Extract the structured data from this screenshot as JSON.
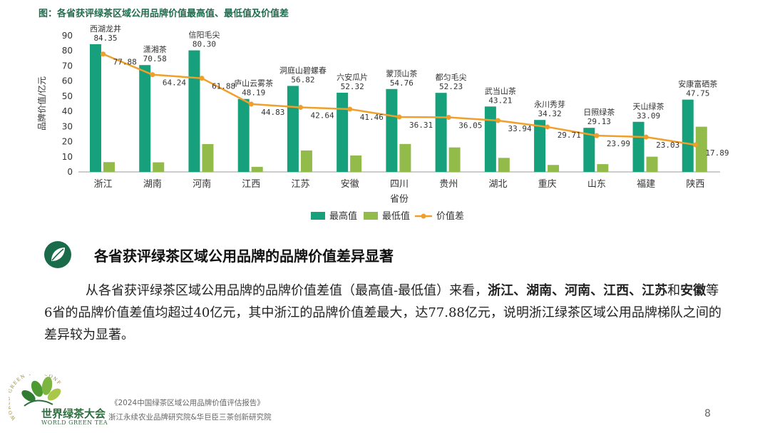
{
  "figure_title": "图：各省获评绿茶区域公用品牌价值最高值、最低值及价值差",
  "chart_data": {
    "type": "bar",
    "xlabel": "省份",
    "ylabel": "品牌价值/亿元",
    "ylim": [
      0,
      90
    ],
    "yticks": [
      0,
      10,
      20,
      30,
      40,
      50,
      60,
      70,
      80,
      90
    ],
    "grid": false,
    "legend_position": "bottom",
    "categories": [
      "浙江",
      "湖南",
      "河南",
      "江西",
      "江苏",
      "安徽",
      "四川",
      "贵州",
      "湖北",
      "重庆",
      "山东",
      "福建",
      "陕西"
    ],
    "series": [
      {
        "name": "最高值",
        "kind": "bar",
        "color": "#17a07c",
        "values": [
          84.35,
          70.58,
          80.3,
          48.19,
          56.82,
          52.32,
          54.76,
          52.23,
          43.21,
          34.32,
          29.13,
          33.09,
          47.75
        ],
        "labels": [
          "84.35",
          "70.58",
          "80.30",
          "48.19",
          "56.82",
          "52.32",
          "54.76",
          "52.23",
          "43.21",
          "34.32",
          "29.13",
          "33.09",
          "47.75"
        ]
      },
      {
        "name": "最低值",
        "kind": "bar",
        "color": "#92bb4a",
        "values": [
          6.47,
          6.34,
          18.4,
          3.36,
          14.18,
          10.86,
          18.45,
          16.18,
          9.27,
          4.61,
          5.14,
          10.06,
          29.86
        ]
      },
      {
        "name": "价值差",
        "kind": "line",
        "color": "#f0a02a",
        "values": [
          77.88,
          64.24,
          61.88,
          44.83,
          42.64,
          41.46,
          36.31,
          36.05,
          33.94,
          29.71,
          23.99,
          23.03,
          17.89
        ],
        "labels": [
          "77.88",
          "64.24",
          "61.88",
          "44.83",
          "42.64",
          "41.46",
          "36.31",
          "36.05",
          "33.94",
          "29.71",
          "23.99",
          "23.03",
          "17.89"
        ]
      }
    ],
    "brand_labels": [
      "西湖龙井",
      "潇湘茶",
      "信阳毛尖",
      "庐山云雾茶",
      "洞庭山碧螺春",
      "六安瓜片",
      "蒙顶山茶",
      "都匀毛尖",
      "武当山茶",
      "永川秀芽",
      "日照绿茶",
      "天山绿茶",
      "安康富硒茶"
    ]
  },
  "section": {
    "title": "各省获评绿茶区域公用品牌的品牌价值差异显著",
    "icon": "tea-leaf-icon",
    "icon_color": "#1a6b4a"
  },
  "body": {
    "p1": "从各省获评绿茶区域公用品牌的品牌价值差值（最高值-最低值）来看，",
    "b1": "浙江、湖南、河南、江西、江苏",
    "p2": "和",
    "b2": "安徽",
    "p3": "等6省的品牌价值差值均超过40亿元，其中浙江的品牌价值差最大，达77.88亿元，说明浙江绿茶区域公用品牌梯队之间的差异较为显著。"
  },
  "footer": {
    "logo_cn": "世界绿茶大会",
    "logo_en": "WORLD GREEN TEA",
    "logo_arc_text": "WORLD GREEN TEA CONFERENCE",
    "report": "《2024中国绿茶区域公用品牌价值评估报告》",
    "institutes": "浙江永续农业品牌研究院&华巨臣三茶创新研究院",
    "page": "8"
  }
}
